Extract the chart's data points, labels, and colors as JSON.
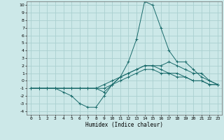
{
  "title": "",
  "xlabel": "Humidex (Indice chaleur)",
  "ylabel": "",
  "bg_color": "#cce8e8",
  "grid_color": "#aad0d0",
  "line_color": "#1a6b6b",
  "xlim": [
    -0.5,
    23.5
  ],
  "ylim": [
    -4.5,
    10.5
  ],
  "xticks": [
    0,
    1,
    2,
    3,
    4,
    5,
    6,
    7,
    8,
    9,
    10,
    11,
    12,
    13,
    14,
    15,
    16,
    17,
    18,
    19,
    20,
    21,
    22,
    23
  ],
  "yticks": [
    -4,
    -3,
    -2,
    -1,
    0,
    1,
    2,
    3,
    4,
    5,
    6,
    7,
    8,
    9,
    10
  ],
  "series": [
    {
      "x": [
        0,
        1,
        2,
        3,
        4,
        5,
        6,
        7,
        8,
        9,
        10,
        11,
        12,
        13,
        14,
        15,
        16,
        17,
        18,
        19,
        20,
        21,
        22,
        23
      ],
      "y": [
        -1,
        -1,
        -1,
        -1,
        -1.5,
        -2,
        -3,
        -3.5,
        -3.5,
        -2,
        -0.5,
        0.5,
        2.5,
        5.5,
        10.5,
        10,
        7,
        4,
        2.5,
        2.5,
        1.5,
        0.5,
        0,
        -0.5
      ]
    },
    {
      "x": [
        0,
        1,
        2,
        3,
        4,
        5,
        6,
        7,
        8,
        9,
        10,
        11,
        12,
        13,
        14,
        15,
        16,
        17,
        18,
        19,
        20,
        21,
        22,
        23
      ],
      "y": [
        -1,
        -1,
        -1,
        -1,
        -1,
        -1,
        -1,
        -1,
        -1,
        -1.5,
        -0.5,
        0.5,
        1,
        1.5,
        2,
        2,
        2,
        2.5,
        2,
        1.5,
        1,
        1,
        0,
        -0.5
      ]
    },
    {
      "x": [
        0,
        1,
        2,
        3,
        4,
        5,
        6,
        7,
        8,
        9,
        10,
        11,
        12,
        13,
        14,
        15,
        16,
        17,
        18,
        19,
        20,
        21,
        22,
        23
      ],
      "y": [
        -1,
        -1,
        -1,
        -1,
        -1,
        -1,
        -1,
        -1,
        -1,
        -0.5,
        0,
        0.5,
        1,
        1.5,
        2,
        2,
        1.5,
        1,
        0.5,
        0.5,
        0,
        0,
        -0.5,
        -0.5
      ]
    },
    {
      "x": [
        0,
        1,
        2,
        3,
        4,
        5,
        6,
        7,
        8,
        9,
        10,
        11,
        12,
        13,
        14,
        15,
        16,
        17,
        18,
        19,
        20,
        21,
        22,
        23
      ],
      "y": [
        -1,
        -1,
        -1,
        -1,
        -1,
        -1,
        -1,
        -1,
        -1,
        -1,
        -0.5,
        0,
        0.5,
        1,
        1.5,
        1.5,
        1,
        1,
        1,
        0.5,
        0,
        0,
        -0.5,
        -0.5
      ]
    }
  ]
}
